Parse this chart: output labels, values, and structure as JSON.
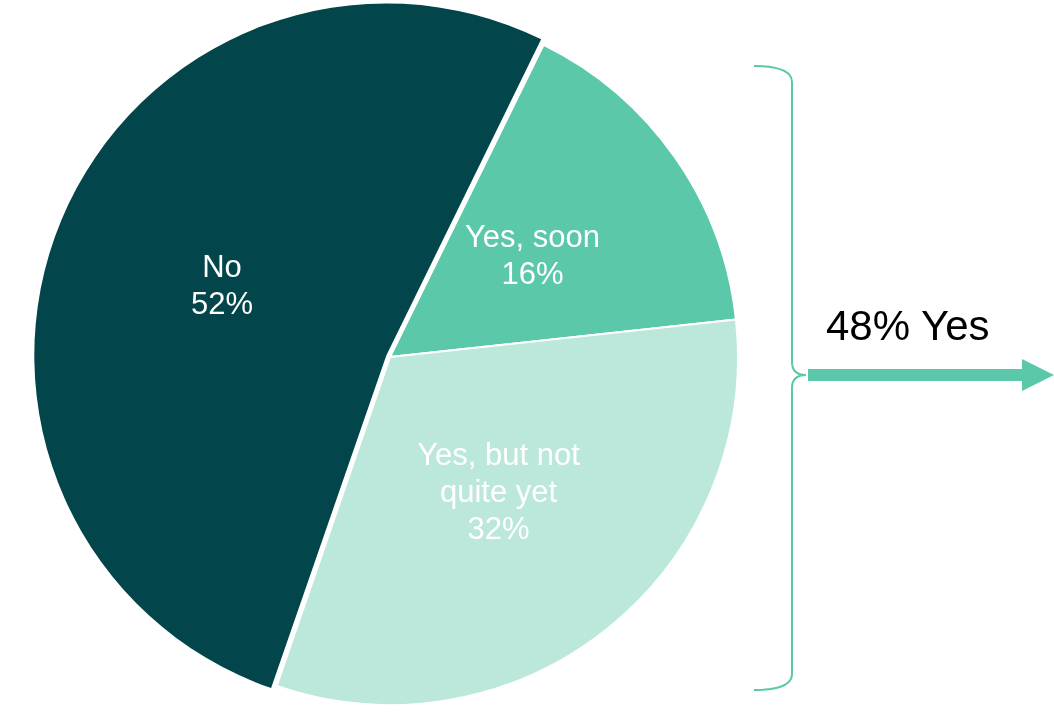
{
  "chart_data": {
    "type": "pie",
    "categories": [
      "No",
      "Yes, soon",
      "Yes, but not quite yet"
    ],
    "values": [
      52,
      16,
      32
    ],
    "colors": [
      "#02454a",
      "#5bc8a9",
      "#bce8dc"
    ],
    "value_labels": [
      "52%",
      "16%",
      "32%"
    ],
    "legend": false,
    "annotations": [
      "48% Yes"
    ]
  }
}
